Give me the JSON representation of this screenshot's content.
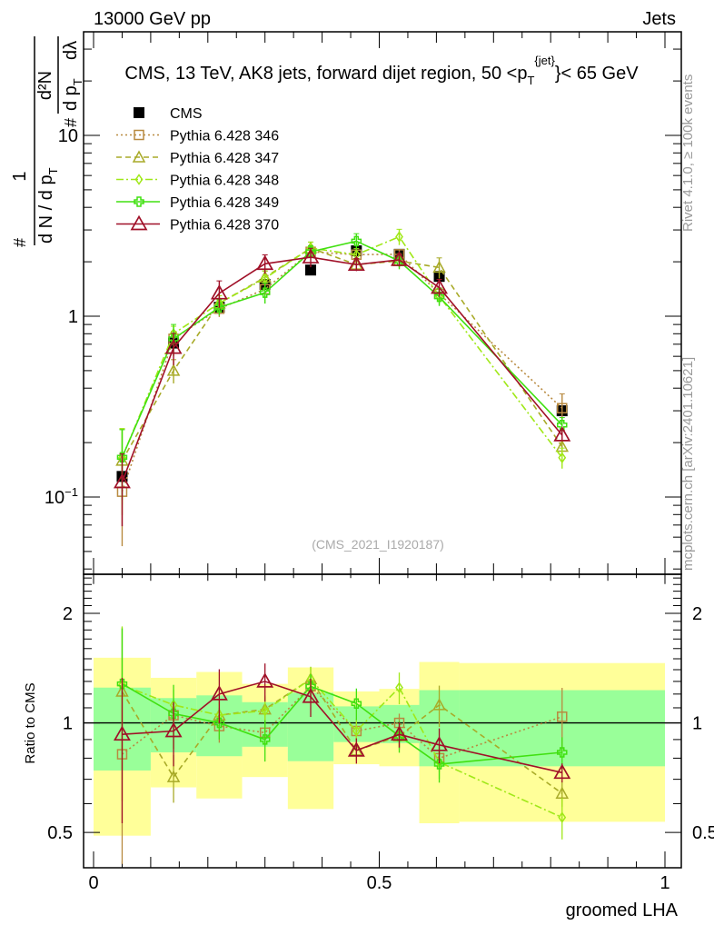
{
  "header": {
    "left": "13000 GeV pp",
    "right": "Jets"
  },
  "side_labels": {
    "rivet": "Rivet 4.1.0, ≥ 100k events",
    "mcplots": "mcplots.cern.ch [arXiv:2401.10621]"
  },
  "watermark": "(CMS_2021_I1920187)",
  "ylabel": {
    "num_one": "1",
    "den": "d N / d p",
    "den_sub": "T",
    "num_d2N": "d²N",
    "den2": "d p",
    "den2_sub": "T",
    "dlambda": "dλ",
    "hash": "#"
  },
  "chart_data": [
    {
      "type": "line",
      "title": "CMS, 13 TeV, AK8 jets, forward dijet region, 50 <p",
      "title_sup": "{jet}",
      "title_sub": "T",
      "title_end": "}< 65 GeV",
      "xlabel": "groomed LHA",
      "ylabel": "1/(dN/dp_T) d²N/(dp_T dλ)",
      "yscale": "log",
      "xlim": [
        0,
        1
      ],
      "ylim": [
        0.0374,
        37.4
      ],
      "x": [
        0.05,
        0.14,
        0.22,
        0.3,
        0.38,
        0.46,
        0.535,
        0.605,
        0.82
      ],
      "yticks": [
        {
          "v": 0.1,
          "label": "10",
          "sup": "−1"
        },
        {
          "v": 1,
          "label": "1",
          "sup": ""
        },
        {
          "v": 10,
          "label": "10",
          "sup": ""
        }
      ],
      "legend_position": "top-left",
      "series": [
        {
          "name": "CMS",
          "color": "#000000",
          "marker": "filled-square",
          "dash": "none",
          "line": false,
          "values": [
            0.13,
            0.71,
            1.12,
            1.5,
            1.8,
            2.3,
            2.2,
            1.66,
            0.3
          ],
          "rel_err": [
            0.02,
            0.02,
            0.02,
            0.02,
            0.02,
            0.02,
            0.02,
            0.02,
            0.02
          ]
        },
        {
          "name": "Pythia 6.428 346",
          "color": "#b88a40",
          "marker": "open-square",
          "dash": "2,3",
          "line": true,
          "values": [
            0.107,
            0.75,
            1.1,
            1.41,
            2.27,
            2.19,
            2.2,
            1.33,
            0.31
          ],
          "rel_err": [
            0.5,
            0.1,
            0.1,
            0.08,
            0.07,
            0.06,
            0.06,
            0.08,
            0.2
          ]
        },
        {
          "name": "Pythia 6.428 347",
          "color": "#a8aa28",
          "marker": "open-triangle",
          "dash": "6,4",
          "line": true,
          "values": [
            0.159,
            0.5,
            1.18,
            1.64,
            2.38,
            1.93,
            2.02,
            1.86,
            0.19
          ],
          "rel_err": [
            0.5,
            0.15,
            0.1,
            0.08,
            0.08,
            0.06,
            0.08,
            0.13,
            0.08
          ]
        },
        {
          "name": "Pythia 6.428 348",
          "color": "#a0e818",
          "marker": "open-diamond",
          "dash": "8,3,2,3",
          "line": true,
          "values": [
            0.165,
            0.8,
            1.18,
            1.62,
            2.38,
            2.19,
            2.75,
            1.29,
            0.165
          ],
          "rel_err": [
            0.45,
            0.1,
            0.1,
            0.1,
            0.08,
            0.08,
            0.1,
            0.1,
            0.13
          ]
        },
        {
          "name": "Pythia 6.428 349",
          "color": "#40e010",
          "marker": "open-cross",
          "dash": "none",
          "line": true,
          "values": [
            0.166,
            0.75,
            1.12,
            1.35,
            2.27,
            2.6,
            2.02,
            1.28,
            0.25
          ],
          "rel_err": [
            0.42,
            0.2,
            0.1,
            0.13,
            0.08,
            0.1,
            0.1,
            0.11,
            0.1
          ]
        },
        {
          "name": "Pythia 6.428 370",
          "color": "#a01028",
          "marker": "open-triangle-big",
          "dash": "none",
          "line": true,
          "values": [
            0.121,
            0.67,
            1.34,
            1.95,
            2.12,
            1.93,
            2.05,
            1.44,
            0.22
          ],
          "rel_err": [
            0.43,
            0.2,
            0.17,
            0.12,
            0.12,
            0.08,
            0.08,
            0.11,
            0.06
          ]
        }
      ]
    },
    {
      "type": "line",
      "ylabel": "Ratio to CMS",
      "xlabel": "groomed LHA",
      "yscale": "log",
      "ylim": [
        0.4,
        2.56
      ],
      "xticks": [
        {
          "v": 0,
          "label": "0"
        },
        {
          "v": 0.5,
          "label": "0.5"
        },
        {
          "v": 1,
          "label": "1"
        }
      ],
      "yticks": [
        {
          "v": 0.5,
          "label": "0.5"
        },
        {
          "v": 1,
          "label": "1"
        },
        {
          "v": 2,
          "label": "2"
        }
      ],
      "bin_edges": [
        0,
        0.1,
        0.18,
        0.26,
        0.34,
        0.42,
        0.5,
        0.57,
        0.64,
        1.0
      ],
      "band_yellow": {
        "color": "#ffff99",
        "low": [
          0.49,
          0.665,
          0.62,
          0.71,
          0.58,
          0.77,
          0.76,
          0.53,
          0.535
        ],
        "high": [
          1.51,
          1.33,
          1.38,
          1.28,
          1.42,
          1.22,
          1.24,
          1.47,
          1.46
        ]
      },
      "band_green": {
        "color": "#99ff99",
        "low": [
          0.74,
          0.83,
          0.81,
          0.86,
          0.785,
          0.886,
          0.88,
          0.76,
          0.76
        ],
        "high": [
          1.25,
          1.17,
          1.19,
          1.14,
          1.21,
          1.11,
          1.12,
          1.23,
          1.23
        ]
      },
      "series": [
        {
          "name": "Pythia 6.428 346",
          "values": [
            0.82,
            1.05,
            0.98,
            0.94,
            1.26,
            0.95,
            1.0,
            0.8,
            1.04
          ]
        },
        {
          "name": "Pythia 6.428 347",
          "values": [
            1.22,
            0.71,
            1.05,
            1.09,
            1.32,
            0.84,
            0.92,
            1.12,
            0.64
          ]
        },
        {
          "name": "Pythia 6.428 348",
          "values": [
            1.27,
            1.12,
            1.05,
            1.08,
            1.32,
            0.95,
            1.25,
            0.78,
            0.55
          ]
        },
        {
          "name": "Pythia 6.428 349",
          "values": [
            1.28,
            1.06,
            1.0,
            0.9,
            1.26,
            1.13,
            0.92,
            0.77,
            0.83
          ]
        },
        {
          "name": "Pythia 6.428 370",
          "values": [
            0.93,
            0.95,
            1.2,
            1.3,
            1.18,
            0.84,
            0.93,
            0.87,
            0.73
          ]
        }
      ]
    }
  ]
}
